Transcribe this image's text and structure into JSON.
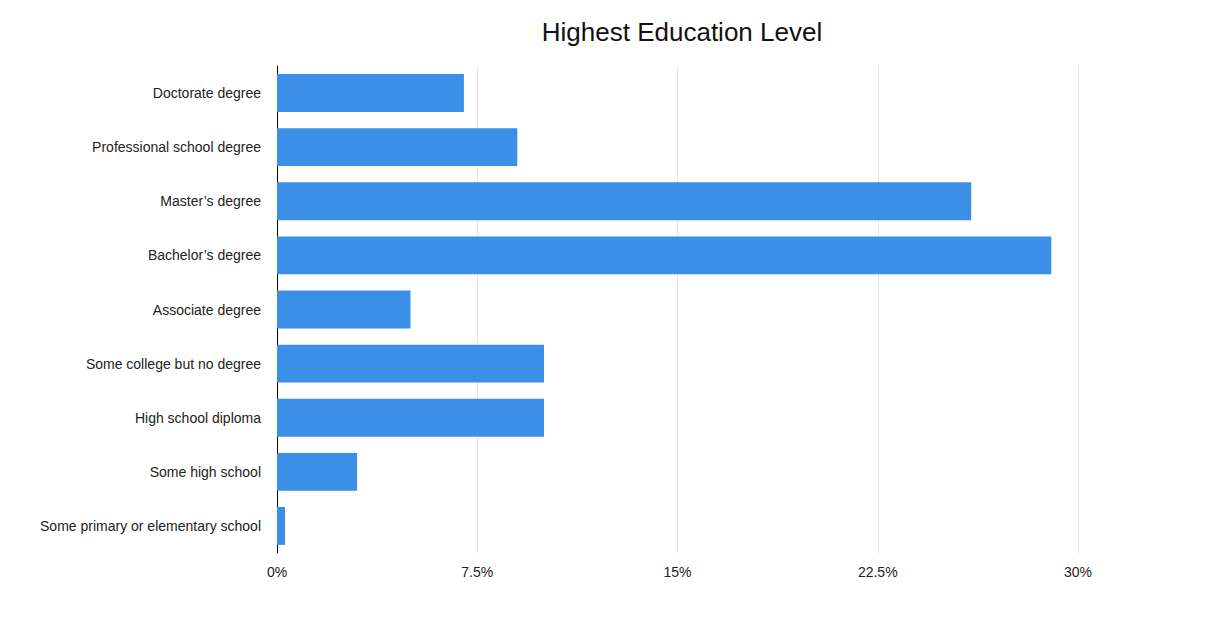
{
  "chart_data": {
    "type": "bar",
    "title": "Highest Education Level",
    "orientation": "horizontal",
    "categories": [
      "Doctorate degree",
      "Professional school degree",
      "Master’s degree",
      "Bachelor’s degree",
      "Associate degree",
      "Some college but no degree",
      "High school diploma",
      "Some high school",
      "Some primary or elementary school"
    ],
    "values": [
      7,
      9,
      26,
      29,
      5,
      10,
      10,
      3,
      0.3
    ],
    "color": "#3b8fe6",
    "xlim": [
      0,
      30
    ],
    "xticks": [
      {
        "value": 0,
        "label": "0%"
      },
      {
        "value": 7.5,
        "label": "7.5%"
      },
      {
        "value": 15,
        "label": "15%"
      },
      {
        "value": 22.5,
        "label": "22.5%"
      },
      {
        "value": 30,
        "label": "30%"
      }
    ],
    "grid": true
  }
}
